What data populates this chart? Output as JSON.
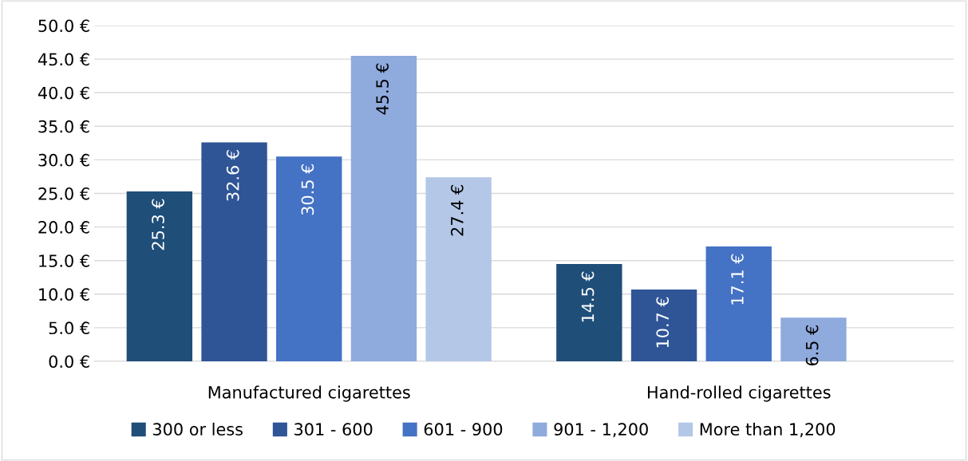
{
  "chart_data": {
    "type": "bar",
    "categories": [
      "Manufactured cigarettes",
      "Hand-rolled cigarettes"
    ],
    "series": [
      {
        "name": "300 or less",
        "color": "#1f4e79",
        "values": [
          25.3,
          14.5
        ],
        "value_labels": [
          "25.3 €",
          "14.5 €"
        ]
      },
      {
        "name": "301 - 600",
        "color": "#2f5597",
        "values": [
          32.6,
          10.7
        ],
        "value_labels": [
          "32.6 €",
          "10.7 €"
        ]
      },
      {
        "name": "601 - 900",
        "color": "#4472c4",
        "values": [
          30.5,
          17.1
        ],
        "value_labels": [
          "30.5 €",
          "17.1 €"
        ]
      },
      {
        "name": "901 - 1,200",
        "color": "#8faadc",
        "values": [
          45.5,
          6.5
        ],
        "value_labels": [
          "45.5 €",
          "6.5 €"
        ]
      },
      {
        "name": "More than 1,200",
        "color": "#b4c7e7",
        "values": [
          27.4,
          null
        ],
        "value_labels": [
          "27.4 €",
          null
        ]
      }
    ],
    "ylim": [
      0,
      50
    ],
    "yticks": [
      {
        "value": 0,
        "label": "0.0 €"
      },
      {
        "value": 5,
        "label": "5.0 €"
      },
      {
        "value": 10,
        "label": "10.0 €"
      },
      {
        "value": 15,
        "label": "15.0 €"
      },
      {
        "value": 20,
        "label": "20.0 €"
      },
      {
        "value": 25,
        "label": "25.0 €"
      },
      {
        "value": 30,
        "label": "30.0 €"
      },
      {
        "value": 35,
        "label": "35.0 €"
      },
      {
        "value": 40,
        "label": "40.0 €"
      },
      {
        "value": 45,
        "label": "45.0 €"
      },
      {
        "value": 50,
        "label": "50.0 €"
      }
    ],
    "grid": "y",
    "legend": "bottom"
  }
}
